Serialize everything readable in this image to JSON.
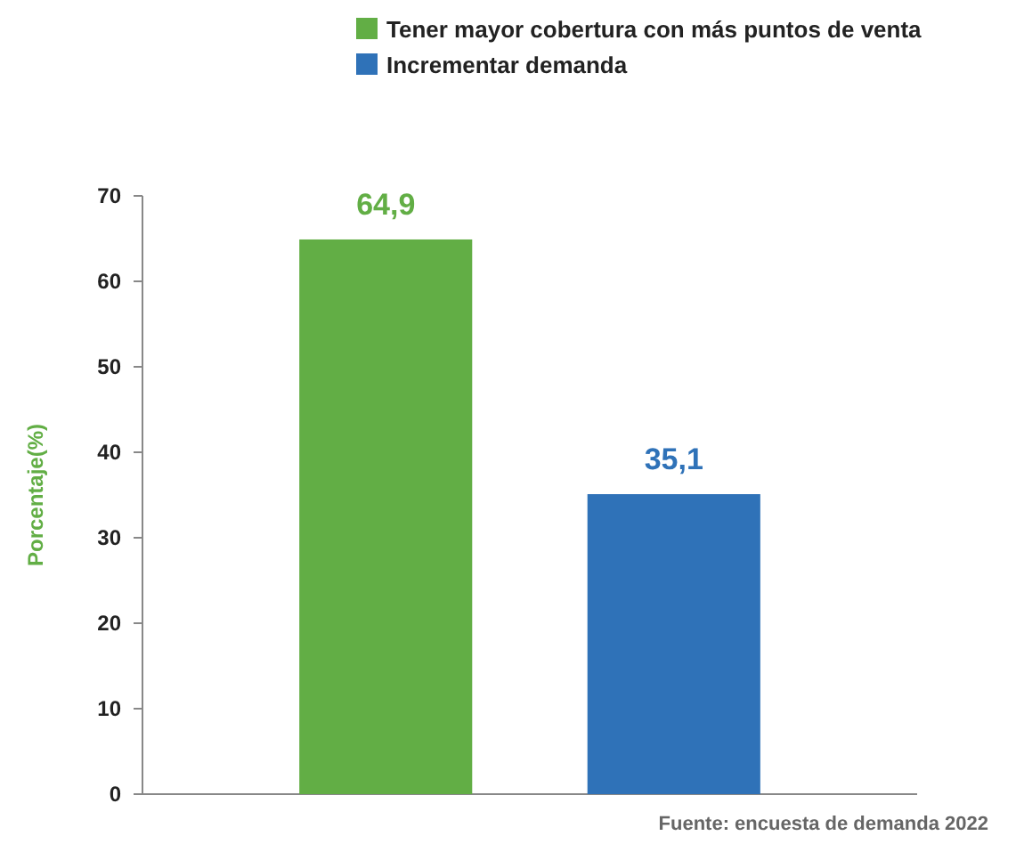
{
  "chart_data": {
    "type": "bar",
    "categories": [
      null
    ],
    "series": [
      {
        "name": "Tener mayor cobertura con más puntos de venta",
        "color": "#62ae45",
        "values": [
          64.9
        ],
        "value_labels": [
          "64,9"
        ]
      },
      {
        "name": "Incrementar demanda",
        "color": "#2f72b8",
        "values": [
          35.1
        ],
        "value_labels": [
          "35,1"
        ]
      }
    ],
    "ylabel": "Porcentaje(%)",
    "ylim": [
      0,
      70
    ],
    "yticks": [
      0,
      10,
      20,
      30,
      40,
      50,
      60,
      70
    ],
    "grid": false,
    "legend": "top",
    "annotations": [
      "Fuente: encuesta de demanda 2022"
    ]
  }
}
